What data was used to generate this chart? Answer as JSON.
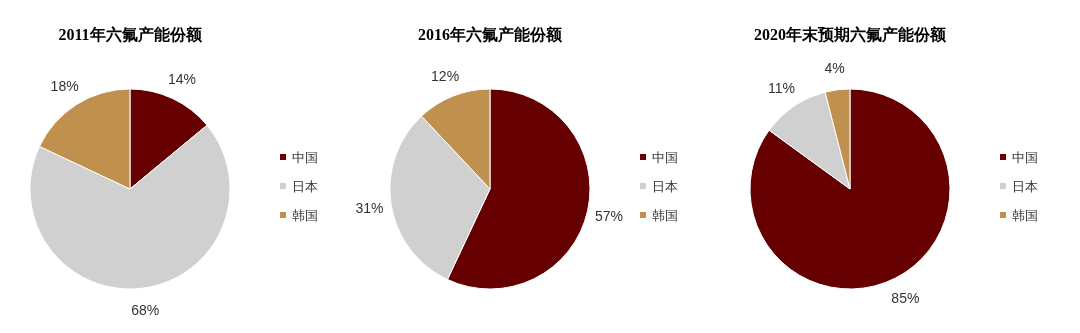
{
  "chart_data": [
    {
      "type": "pie",
      "title": "2011年六氟产能份额",
      "categories": [
        "中国",
        "日本",
        "韩国"
      ],
      "values": [
        14,
        68,
        18
      ],
      "value_labels": [
        "14%",
        "68%",
        "18%"
      ],
      "colors": [
        "#660000",
        "#d0d0d0",
        "#c0904f"
      ],
      "legend": "right"
    },
    {
      "type": "pie",
      "title": "2016年六氟产能份额",
      "categories": [
        "中国",
        "日本",
        "韩国"
      ],
      "values": [
        57,
        31,
        12
      ],
      "value_labels": [
        "57%",
        "31%",
        "12%"
      ],
      "colors": [
        "#660000",
        "#d0d0d0",
        "#c0904f"
      ],
      "legend": "right"
    },
    {
      "type": "pie",
      "title": "2020年末预期六氟产能份额",
      "categories": [
        "中国",
        "日本",
        "韩国"
      ],
      "values": [
        85,
        11,
        4
      ],
      "value_labels": [
        "85%",
        "11%",
        "4%"
      ],
      "colors": [
        "#660000",
        "#d0d0d0",
        "#c0904f"
      ],
      "legend": "right"
    }
  ]
}
